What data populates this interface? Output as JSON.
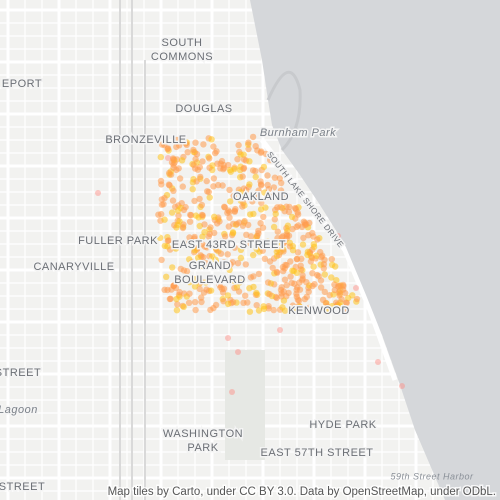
{
  "map": {
    "labels": [
      {
        "lines": [
          "SOUTH",
          "COMMONS"
        ]
      },
      {
        "lines": [
          "EPORT"
        ]
      },
      {
        "lines": [
          "DOUGLAS"
        ]
      },
      {
        "lines": [
          "BRONZEVILLE"
        ]
      },
      {
        "lines": [
          "Burnham Park"
        ]
      },
      {
        "lines": [
          "OAKLAND"
        ]
      },
      {
        "lines": [
          "SOUTH LAKE SHORE DRIVE"
        ]
      },
      {
        "lines": [
          "FULLER PARK"
        ]
      },
      {
        "lines": [
          "EAST 43RD STREET"
        ]
      },
      {
        "lines": [
          "CANARYVILLE"
        ]
      },
      {
        "lines": [
          "GRAND",
          "BOULEVARD"
        ]
      },
      {
        "lines": [
          "KENWOOD"
        ]
      },
      {
        "lines": [
          "STREET"
        ]
      },
      {
        "lines": [
          "Lagoon"
        ]
      },
      {
        "lines": [
          "WASHINGTON",
          "PARK"
        ]
      },
      {
        "lines": [
          "HYDE PARK"
        ]
      },
      {
        "lines": [
          "EAST 57TH STREET"
        ]
      },
      {
        "lines": [
          "59th Street Harbor"
        ]
      },
      {
        "lines": [
          "STREET"
        ]
      }
    ],
    "attribution": "Map tiles by Carto, under CC BY 3.0. Data by OpenStreetMap, under ODbL."
  }
}
